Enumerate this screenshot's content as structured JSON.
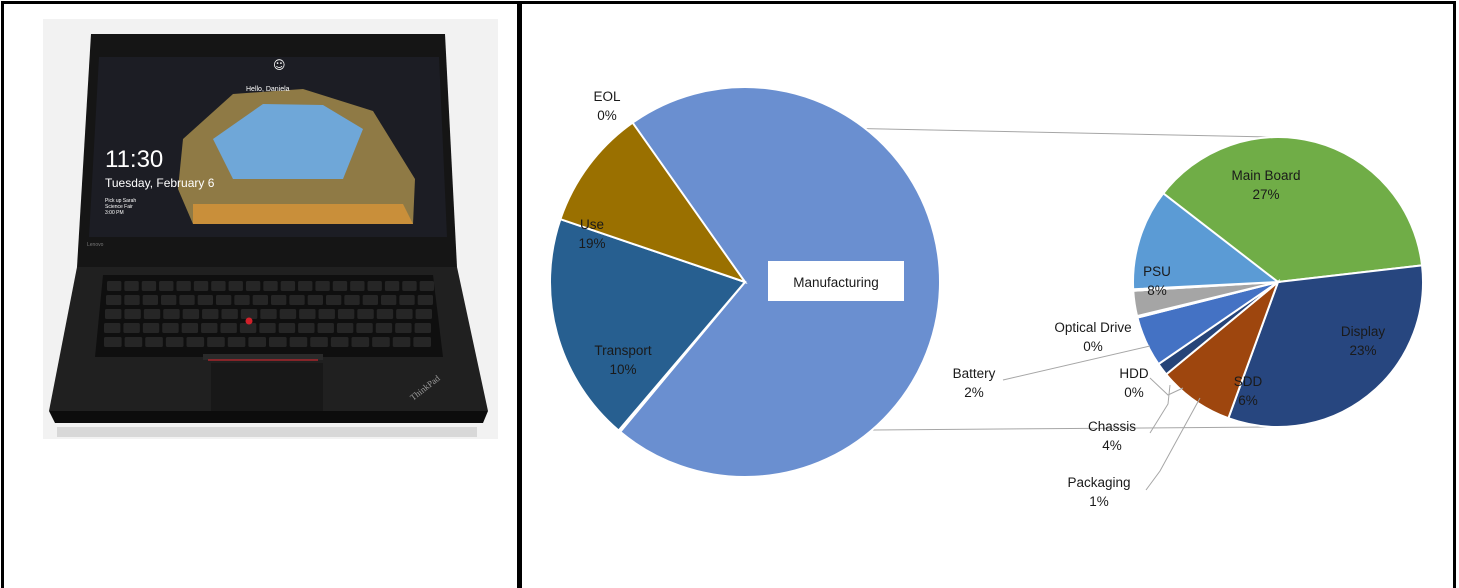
{
  "photo": {
    "alt": "Laptop product photo",
    "screen_time": "11:30",
    "screen_date": "Tuesday, February 6",
    "screen_greeting": "Hello, Daniela",
    "screen_note": "Pick up Sarah",
    "screen_note2": "Science Fair",
    "screen_note3": "3:00 PM",
    "brand_label": "Lenovo",
    "logo_label": "ThinkPad"
  },
  "chart_data": {
    "type": "pie",
    "subtype": "pie-of-pie",
    "main": {
      "slices": [
        {
          "label": "Manufacturing",
          "value": 71,
          "value_label": "",
          "color": "#6a8fd0"
        },
        {
          "label": "EOL",
          "value": 0,
          "value_label": "0%",
          "color": "#6a8fd0"
        },
        {
          "label": "Use",
          "value": 19,
          "value_label": "19%",
          "color": "#275f90"
        },
        {
          "label": "Transport",
          "value": 10,
          "value_label": "10%",
          "color": "#9a7000"
        }
      ]
    },
    "breakdown_of": "Manufacturing",
    "secondary": {
      "slices": [
        {
          "label": "Main Board",
          "value": 27,
          "value_label": "27%",
          "color": "#70ad47"
        },
        {
          "label": "Display",
          "value": 23,
          "value_label": "23%",
          "color": "#27467f"
        },
        {
          "label": "SDD",
          "value": 6,
          "value_label": "6%",
          "color": "#9e460e"
        },
        {
          "label": "Packaging",
          "value": 1,
          "value_label": "1%",
          "color": "#264478"
        },
        {
          "label": "Chassis",
          "value": 4,
          "value_label": "4%",
          "color": "#4472c4"
        },
        {
          "label": "HDD",
          "value": 0,
          "value_label": "0%",
          "color": "#4472c4"
        },
        {
          "label": "Battery",
          "value": 2,
          "value_label": "2%",
          "color": "#a5a5a5"
        },
        {
          "label": "Optical Drive",
          "value": 0,
          "value_label": "0%",
          "color": "#a5a5a5"
        },
        {
          "label": "PSU",
          "value": 8,
          "value_label": "8%",
          "color": "#5b9bd5"
        }
      ]
    }
  }
}
